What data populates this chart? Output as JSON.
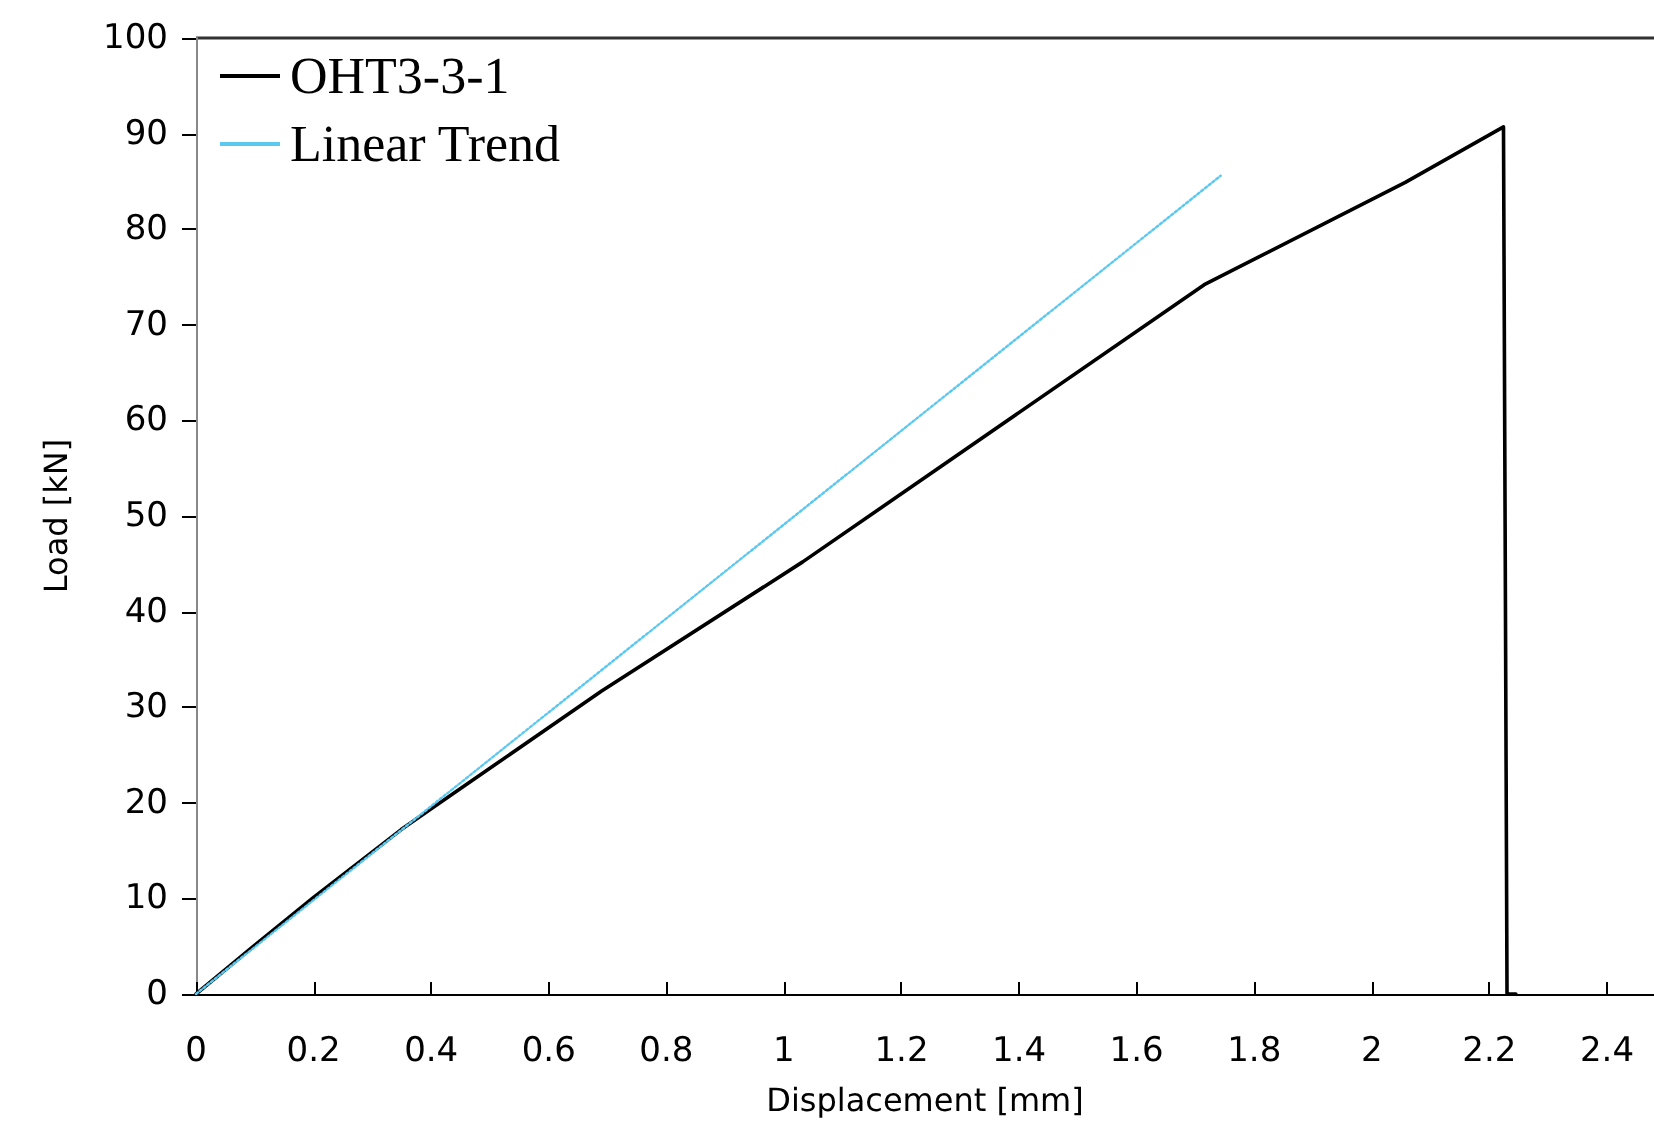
{
  "chart_data": {
    "type": "line",
    "xlabel": "Displacement [mm]",
    "ylabel": "Load [kN]",
    "xlim": [
      0,
      2.48
    ],
    "xticks": [
      0,
      0.2,
      0.4,
      0.6,
      0.8,
      1,
      1.2,
      1.4,
      1.6,
      1.8,
      2,
      2.2,
      2.4
    ],
    "ylim": [
      0,
      100
    ],
    "yticks": [
      0,
      10,
      20,
      30,
      40,
      50,
      60,
      70,
      80,
      90,
      100
    ],
    "grid": false,
    "legend": "top left",
    "marker": "none",
    "series": [
      {
        "name": "OHT3-3-1",
        "color": "#000000",
        "line_style": "solid",
        "x": [
          0,
          0.1,
          0.2,
          0.349,
          0.69,
          1.032,
          1.715,
          2.057,
          2.224,
          2.23,
          2.245
        ],
        "values": [
          0,
          5.1,
          10.1,
          17.2,
          31.7,
          45.2,
          74.2,
          84.9,
          90.7,
          0,
          0
        ]
      },
      {
        "name": "Linear Trend",
        "color": "#5bc8f0",
        "line_style": "dotted",
        "x": [
          0,
          1.743
        ],
        "values": [
          0,
          85.6
        ]
      }
    ]
  }
}
